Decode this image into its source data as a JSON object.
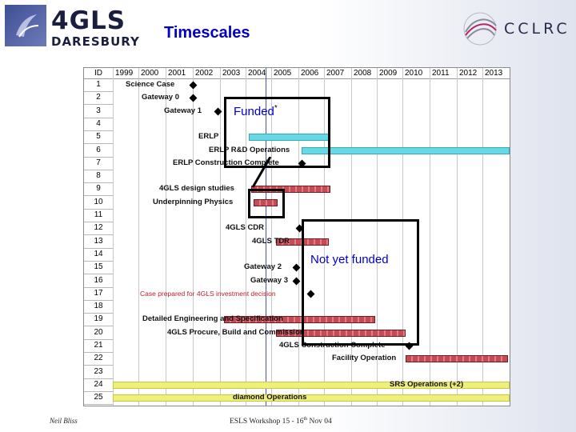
{
  "header": {
    "logo_main": "4GLS",
    "logo_sub": "DARESBURY",
    "title": "Timescales",
    "partner_logo": "CCLRC"
  },
  "chart": {
    "id_header": "ID",
    "years": [
      "1999",
      "2000",
      "2001",
      "2002",
      "2003",
      "2004",
      "2005",
      "2006",
      "2007",
      "2008",
      "2009",
      "2010",
      "2011",
      "2012",
      "2013"
    ],
    "row_ids": [
      "1",
      "2",
      "3",
      "4",
      "5",
      "6",
      "7",
      "8",
      "9",
      "10",
      "11",
      "12",
      "13",
      "14",
      "15",
      "16",
      "17",
      "18",
      "19",
      "20",
      "21",
      "22",
      "23",
      "24",
      "25"
    ],
    "tasks": [
      {
        "row": 1,
        "label": "Science Case",
        "kind": "milestone"
      },
      {
        "row": 2,
        "label": "Gateway 0",
        "kind": "milestone"
      },
      {
        "row": 3,
        "label": "Gateway 1",
        "kind": "milestone"
      },
      {
        "row": 5,
        "label": "ERLP",
        "kind": "bar",
        "color": "cyan"
      },
      {
        "row": 6,
        "label": "ERLP R&D Operations",
        "kind": "bar",
        "color": "cyan"
      },
      {
        "row": 7,
        "label": "ERLP Construction Complete",
        "kind": "milestone"
      },
      {
        "row": 9,
        "label": "4GLS design studies",
        "kind": "bar",
        "color": "red"
      },
      {
        "row": 10,
        "label": "Underpinning Physics",
        "kind": "bar",
        "color": "red"
      },
      {
        "row": 12,
        "label": "4GLS CDR",
        "kind": "milestone"
      },
      {
        "row": 13,
        "label": "4GLS TDR",
        "kind": "bar",
        "color": "red"
      },
      {
        "row": 15,
        "label": "Gateway 2",
        "kind": "milestone"
      },
      {
        "row": 16,
        "label": "Gateway 3",
        "kind": "milestone"
      },
      {
        "row": 17,
        "label": "Case prepared for 4GLS investment decision",
        "kind": "milestone"
      },
      {
        "row": 19,
        "label": "Detailed Engineering and Specification",
        "kind": "bar",
        "color": "red"
      },
      {
        "row": 20,
        "label": "4GLS Procure, Build and Commission",
        "kind": "bar",
        "color": "red"
      },
      {
        "row": 21,
        "label": "4GLS Construction Complete",
        "kind": "milestone"
      },
      {
        "row": 22,
        "label": "Facility Operation",
        "kind": "bar",
        "color": "red"
      },
      {
        "row": 24,
        "label": "SRS Operations (+2)",
        "kind": "bar",
        "color": "yellow"
      },
      {
        "row": 25,
        "label": "diamond Operations",
        "kind": "bar",
        "color": "yellow"
      }
    ]
  },
  "annotations": {
    "funded": "Funded",
    "funded_mark": "*",
    "not_funded": "Not yet funded"
  },
  "footer": {
    "author": "Neil Bliss",
    "event_prefix": "ESLS Workshop 15 - 16",
    "event_sup": "th",
    "event_suffix": " Nov 04"
  }
}
